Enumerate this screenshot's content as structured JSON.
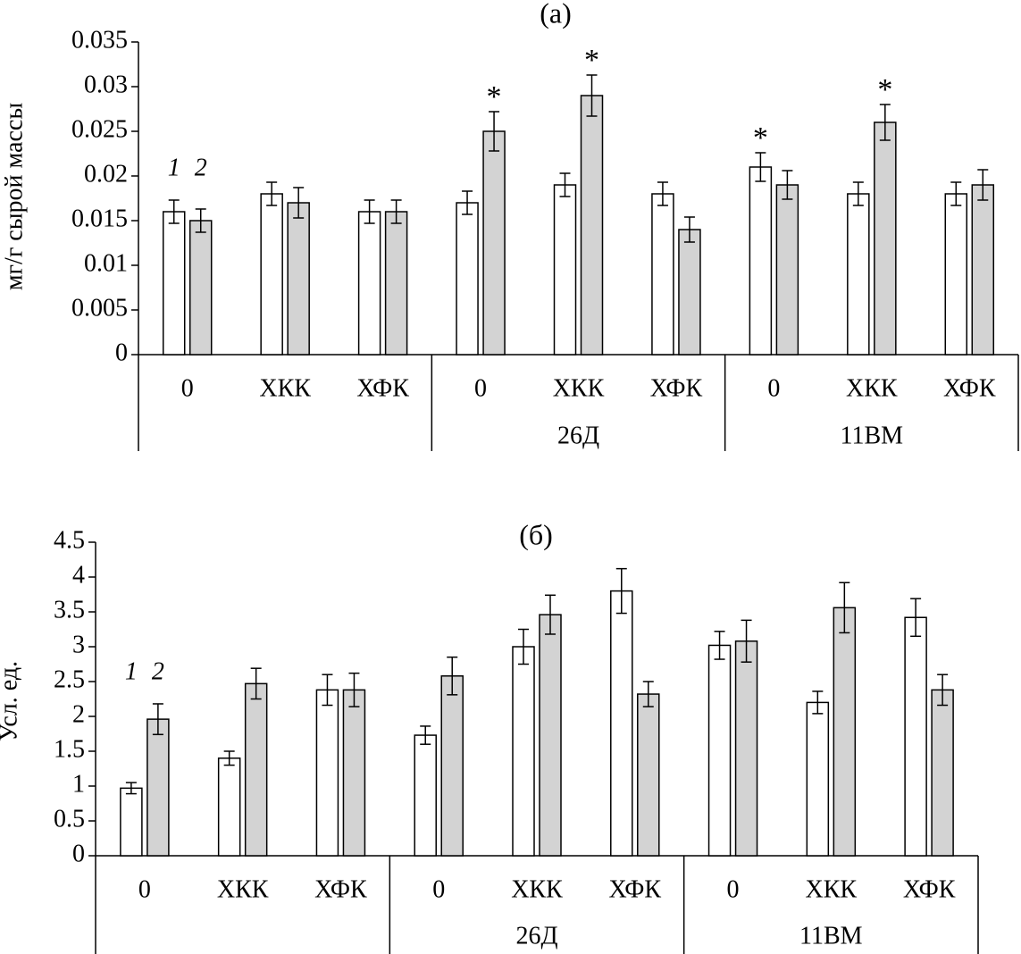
{
  "chart_data": [
    {
      "type": "bar",
      "title": "(а)",
      "ylabel": "мг/г сырой массы",
      "categories": [
        "0",
        "ХКК",
        "ХФК",
        "0",
        "ХКК",
        "ХФК",
        "0",
        "ХКК",
        "ХФК"
      ],
      "groups": [
        null,
        "26Д",
        "11ВМ"
      ],
      "ylim": [
        0,
        0.035
      ],
      "yticks": [
        0,
        0.005,
        0.01,
        0.015,
        0.02,
        0.025,
        0.03,
        0.035
      ],
      "series": [
        {
          "name": "1",
          "color": "#ffffff",
          "values": [
            0.016,
            0.018,
            0.016,
            0.017,
            0.019,
            0.018,
            0.021,
            0.018,
            0.018
          ],
          "errors": [
            0.0013,
            0.0013,
            0.0013,
            0.0013,
            0.0013,
            0.0013,
            0.0016,
            0.0013,
            0.0013
          ],
          "annotations": [
            null,
            null,
            null,
            null,
            null,
            null,
            "*",
            null,
            null
          ]
        },
        {
          "name": "2",
          "color": "#d3d3d3",
          "values": [
            0.015,
            0.017,
            0.016,
            0.025,
            0.029,
            0.014,
            0.019,
            0.026,
            0.019
          ],
          "errors": [
            0.0013,
            0.0017,
            0.0013,
            0.0022,
            0.0023,
            0.0014,
            0.0016,
            0.002,
            0.0017
          ],
          "annotations": [
            null,
            null,
            null,
            "*",
            "*",
            null,
            null,
            "*",
            null
          ]
        }
      ]
    },
    {
      "type": "bar",
      "title": "(б)",
      "ylabel": "Усл. ед.",
      "categories": [
        "0",
        "ХКК",
        "ХФК",
        "0",
        "ХКК",
        "ХФК",
        "0",
        "ХКК",
        "ХФК"
      ],
      "groups": [
        null,
        "26Д",
        "11ВМ"
      ],
      "ylim": [
        0,
        4.5
      ],
      "yticks": [
        0,
        0.5,
        1,
        1.5,
        2,
        2.5,
        3,
        3.5,
        4,
        4.5
      ],
      "series": [
        {
          "name": "1",
          "color": "#ffffff",
          "values": [
            0.97,
            1.4,
            2.38,
            1.73,
            3.0,
            3.8,
            3.02,
            2.2,
            3.42
          ],
          "errors": [
            0.08,
            0.1,
            0.22,
            0.13,
            0.25,
            0.32,
            0.2,
            0.16,
            0.27
          ]
        },
        {
          "name": "2",
          "color": "#d3d3d3",
          "values": [
            1.96,
            2.47,
            2.38,
            2.58,
            3.46,
            2.32,
            3.08,
            3.56,
            2.38
          ],
          "errors": [
            0.22,
            0.22,
            0.24,
            0.27,
            0.28,
            0.18,
            0.3,
            0.36,
            0.22
          ]
        }
      ]
    }
  ]
}
